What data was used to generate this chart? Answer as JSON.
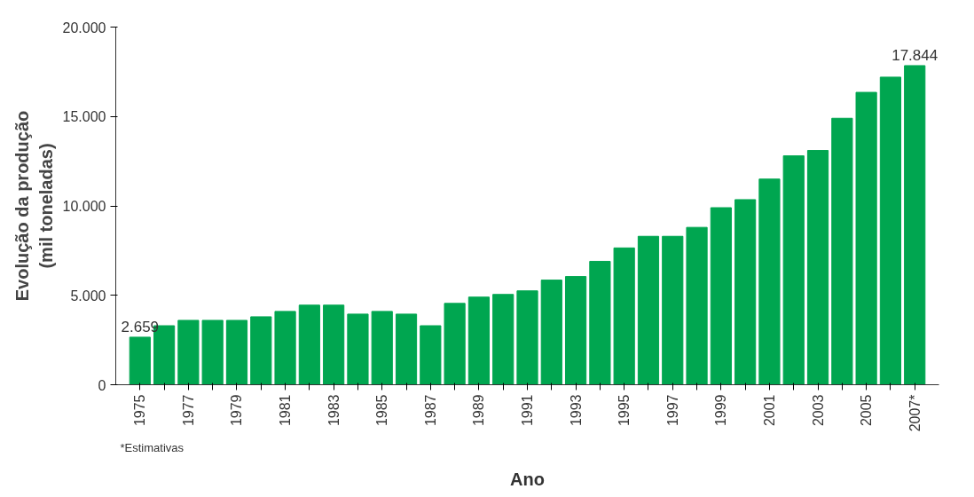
{
  "chart_data": {
    "type": "bar",
    "xlabel": "Ano",
    "ylabel": "Evolução da produção\n(mil toneladas)",
    "categories": [
      "1975",
      null,
      "1977",
      null,
      "1979",
      null,
      "1981",
      null,
      "1983",
      null,
      "1985",
      null,
      "1987",
      null,
      "1989",
      null,
      "1991",
      null,
      "1993",
      null,
      "1995",
      null,
      "1997",
      null,
      "1999",
      null,
      "2001",
      null,
      "2003",
      null,
      "2005",
      null,
      "2007*"
    ],
    "values": [
      2659,
      3300,
      3600,
      3600,
      3600,
      3800,
      4100,
      4450,
      4450,
      3950,
      4100,
      3950,
      3300,
      4550,
      4900,
      5050,
      5250,
      5850,
      6050,
      6900,
      7650,
      8300,
      8300,
      8800,
      9900,
      10350,
      11500,
      12800,
      13100,
      14900,
      16350,
      17200,
      17844
    ],
    "value_labels": [
      "2.659",
      null,
      null,
      null,
      null,
      null,
      null,
      null,
      null,
      null,
      null,
      null,
      null,
      null,
      null,
      null,
      null,
      null,
      null,
      null,
      null,
      null,
      null,
      null,
      null,
      null,
      null,
      null,
      null,
      null,
      null,
      null,
      "17.844"
    ],
    "color": "#00a650",
    "ylim": [
      0,
      20000
    ],
    "yticks": [
      {
        "value": 0,
        "label": "0"
      },
      {
        "value": 5000,
        "label": "5.000"
      },
      {
        "value": 10000,
        "label": "10.000"
      },
      {
        "value": 15000,
        "label": "15.000"
      },
      {
        "value": 20000,
        "label": "20.000"
      }
    ],
    "annotations": [
      "*Estimativas"
    ],
    "grid": false
  }
}
